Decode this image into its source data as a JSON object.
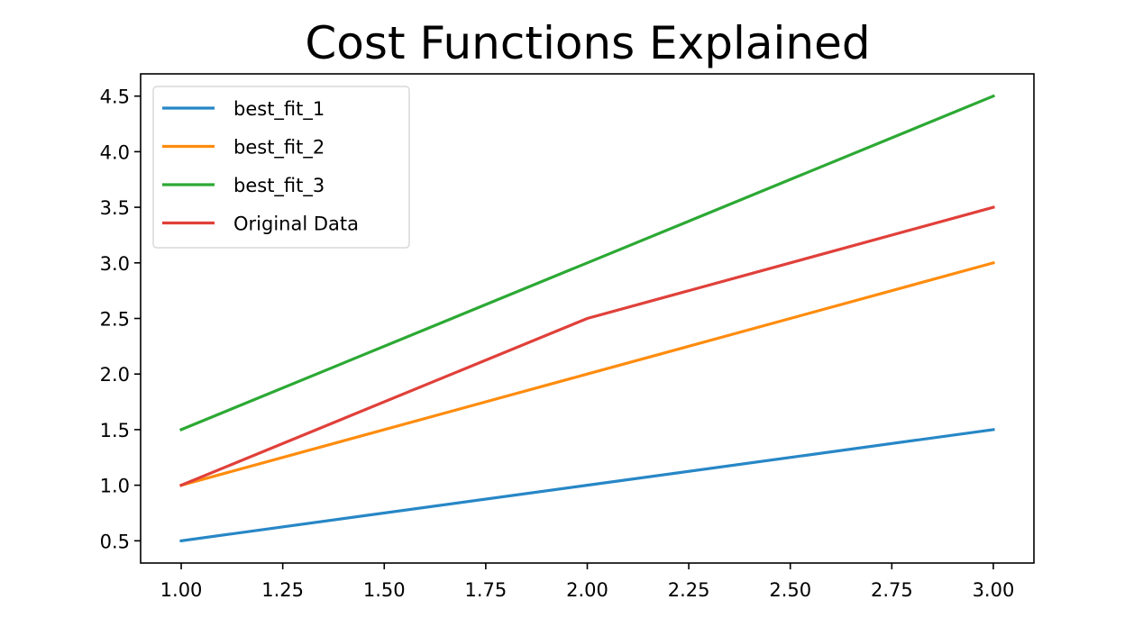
{
  "chart_data": {
    "type": "line",
    "title": "Cost Functions Explained",
    "xlabel": "",
    "ylabel": "",
    "xlim": [
      0.9,
      3.1
    ],
    "ylim": [
      0.3,
      4.7
    ],
    "xticks": [
      "1.00",
      "1.25",
      "1.50",
      "1.75",
      "2.00",
      "2.25",
      "2.50",
      "2.75",
      "3.00"
    ],
    "yticks": [
      "0.5",
      "1.0",
      "1.5",
      "2.0",
      "2.5",
      "3.0",
      "3.5",
      "4.0",
      "4.5"
    ],
    "grid": false,
    "legend_position": "upper-left",
    "x": [
      1,
      2,
      3
    ],
    "series": [
      {
        "name": "best_fit_1",
        "color": "#2787c6",
        "values": [
          0.5,
          1.0,
          1.5
        ]
      },
      {
        "name": "best_fit_2",
        "color": "#ff8c0e",
        "values": [
          1.0,
          2.0,
          3.0
        ]
      },
      {
        "name": "best_fit_3",
        "color": "#2ca934",
        "values": [
          1.5,
          3.0,
          4.5
        ]
      },
      {
        "name": "Original Data",
        "color": "#e0403a",
        "values": [
          1.0,
          2.5,
          3.5
        ]
      }
    ]
  }
}
